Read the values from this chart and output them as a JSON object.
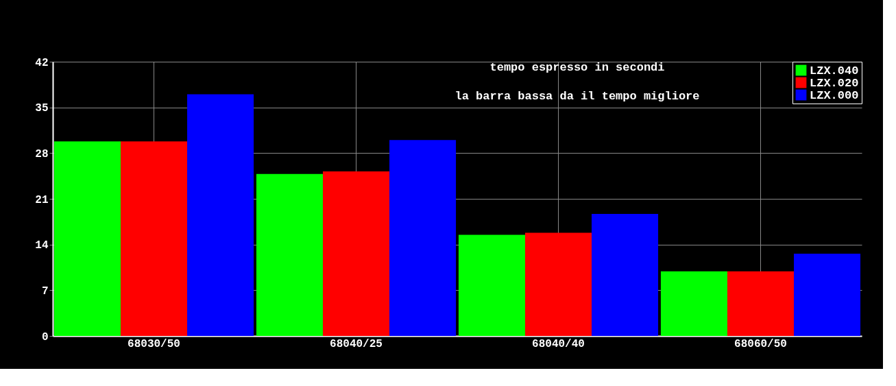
{
  "chart_data": {
    "type": "bar",
    "categories": [
      "68030/50",
      "68040/25",
      "68040/40",
      "68060/50"
    ],
    "series": [
      {
        "name": "LZX.040",
        "color": "#00ff00",
        "values": [
          29.8,
          24.8,
          15.5,
          9.9
        ]
      },
      {
        "name": "LZX.020",
        "color": "#ff0000",
        "values": [
          29.8,
          25.2,
          15.8,
          9.9
        ]
      },
      {
        "name": "LZX.000",
        "color": "#0000ff",
        "values": [
          37.0,
          30.0,
          18.7,
          12.6
        ]
      }
    ],
    "ylim": [
      0,
      42
    ],
    "yticks": [
      0,
      7,
      14,
      21,
      28,
      35,
      42
    ],
    "grid": true,
    "legend": "top right",
    "annotations": [
      "tempo espresso in secondi",
      "la barra bassa da il tempo migliore"
    ]
  }
}
